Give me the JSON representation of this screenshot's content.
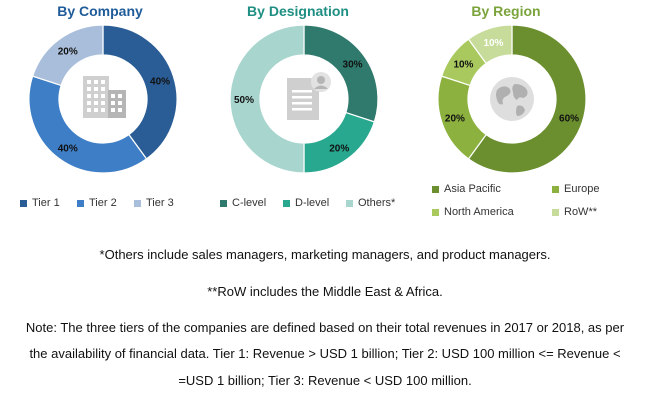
{
  "chart_data": [
    {
      "type": "pie",
      "title": "By Company",
      "title_color": "#1f5b99",
      "categories": [
        "Tier 1",
        "Tier 2",
        "Tier 3"
      ],
      "values": [
        40,
        40,
        20
      ],
      "labels": [
        "40%",
        "40%",
        "20%"
      ],
      "colors": [
        "#2a5d95",
        "#3d7ec6",
        "#a9bedb"
      ],
      "center_icon": "building-icon",
      "legend": "bottom"
    },
    {
      "type": "pie",
      "title": "By Designation",
      "title_color": "#1e8f82",
      "categories": [
        "C-level",
        "D-level",
        "Others*"
      ],
      "values": [
        30,
        20,
        50
      ],
      "labels": [
        "30%",
        "20%",
        "50%"
      ],
      "colors": [
        "#2f7a6d",
        "#27a88f",
        "#a8d6cf"
      ],
      "center_icon": "document-user-icon",
      "legend": "bottom"
    },
    {
      "type": "pie",
      "title": "By Region",
      "title_color": "#7aa33c",
      "categories": [
        "Asia Pacific",
        "Europe",
        "North America",
        "RoW**"
      ],
      "values": [
        60,
        20,
        10,
        10
      ],
      "labels": [
        "60%",
        "20%",
        "10%",
        "10%"
      ],
      "colors": [
        "#6b8f2f",
        "#8cb13f",
        "#a9c95f",
        "#c7dc9a"
      ],
      "center_icon": "globe-icon",
      "legend": "bottom"
    }
  ],
  "notes": {
    "others": "*Others include sales managers, marketing managers, and product managers.",
    "row": "**RoW includes the Middle East & Africa.",
    "tiers_line1": "Note: The three tiers of the companies are defined based on their total revenues in 2017 or 2018, as per",
    "tiers_line2": "the availability of financial data. Tier 1: Revenue > USD 1 billion; Tier 2: USD 100 million <= Revenue <",
    "tiers_line3": "=USD 1 billion; Tier 3: Revenue < USD 100 million."
  }
}
